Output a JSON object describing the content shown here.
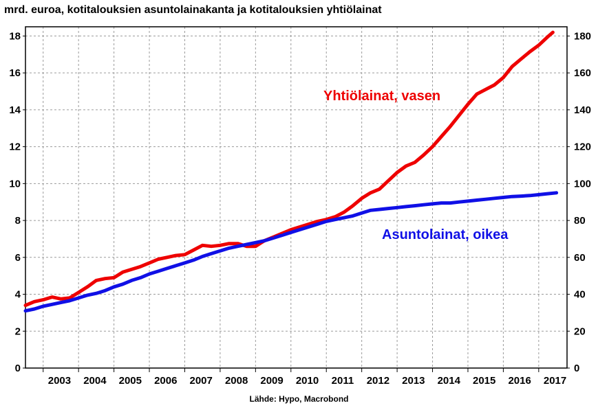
{
  "title": "mrd. euroa, kotitalouksien asuntolainakanta ja kotitalouksien yhtiölainat",
  "source": "Lähde: Hypo, Macrobond",
  "colors": {
    "left_series": "#ee0000",
    "right_series": "#1010e6",
    "grid": "#9a9a9a",
    "axis": "#000000"
  },
  "chart_data": {
    "type": "line",
    "title": "mrd. euroa, kotitalouksien asuntolainakanta ja kotitalouksien yhtiölainat",
    "x_tick_labels": [
      "2003",
      "2004",
      "2005",
      "2006",
      "2007",
      "2008",
      "2009",
      "2010",
      "2011",
      "2012",
      "2013",
      "2014",
      "2015",
      "2016",
      "2017"
    ],
    "xlim": [
      2002.5,
      2017.8
    ],
    "left_axis": {
      "ylim": [
        0,
        18.5
      ],
      "ticks": [
        0,
        2,
        4,
        6,
        8,
        10,
        12,
        14,
        16,
        18
      ]
    },
    "right_axis": {
      "ylim": [
        0,
        185
      ],
      "ticks": [
        0,
        20,
        40,
        60,
        80,
        100,
        120,
        140,
        160,
        180
      ]
    },
    "grid": true,
    "series": [
      {
        "name": "Yhtiölainat, vasen",
        "axis": "left",
        "x": [
          2002.5,
          2002.75,
          2003.0,
          2003.25,
          2003.5,
          2003.75,
          2004.0,
          2004.25,
          2004.5,
          2004.75,
          2005.0,
          2005.25,
          2005.5,
          2005.75,
          2006.0,
          2006.25,
          2006.5,
          2006.75,
          2007.0,
          2007.25,
          2007.5,
          2007.75,
          2008.0,
          2008.25,
          2008.5,
          2008.75,
          2009.0,
          2009.25,
          2009.5,
          2009.75,
          2010.0,
          2010.25,
          2010.5,
          2010.75,
          2011.0,
          2011.25,
          2011.5,
          2011.75,
          2012.0,
          2012.25,
          2012.5,
          2012.75,
          2013.0,
          2013.25,
          2013.5,
          2013.75,
          2014.0,
          2014.25,
          2014.5,
          2014.75,
          2015.0,
          2015.25,
          2015.5,
          2015.75,
          2016.0,
          2016.25,
          2016.5,
          2016.75,
          2017.0,
          2017.25,
          2017.4
        ],
        "values": [
          3.4,
          3.6,
          3.7,
          3.85,
          3.75,
          3.8,
          4.1,
          4.4,
          4.75,
          4.85,
          4.9,
          5.2,
          5.35,
          5.5,
          5.7,
          5.9,
          6.0,
          6.1,
          6.15,
          6.4,
          6.65,
          6.6,
          6.65,
          6.75,
          6.75,
          6.6,
          6.6,
          6.9,
          7.1,
          7.3,
          7.5,
          7.65,
          7.8,
          7.95,
          8.05,
          8.2,
          8.45,
          8.8,
          9.2,
          9.5,
          9.7,
          10.15,
          10.6,
          10.95,
          11.15,
          11.55,
          12.0,
          12.55,
          13.1,
          13.7,
          14.3,
          14.85,
          15.1,
          15.35,
          15.75,
          16.35,
          16.75,
          17.15,
          17.5,
          17.95,
          18.2
        ]
      },
      {
        "name": "Asuntolainat, oikea",
        "axis": "right",
        "x": [
          2002.5,
          2002.75,
          2003.0,
          2003.25,
          2003.5,
          2003.75,
          2004.0,
          2004.25,
          2004.5,
          2004.75,
          2005.0,
          2005.25,
          2005.5,
          2005.75,
          2006.0,
          2006.25,
          2006.5,
          2006.75,
          2007.0,
          2007.25,
          2007.5,
          2007.75,
          2008.0,
          2008.25,
          2008.5,
          2008.75,
          2009.0,
          2009.25,
          2009.5,
          2009.75,
          2010.0,
          2010.25,
          2010.5,
          2010.75,
          2011.0,
          2011.25,
          2011.5,
          2011.75,
          2012.0,
          2012.25,
          2012.5,
          2012.75,
          2013.0,
          2013.25,
          2013.5,
          2013.75,
          2014.0,
          2014.25,
          2014.5,
          2014.75,
          2015.0,
          2015.25,
          2015.5,
          2015.75,
          2016.0,
          2016.25,
          2016.5,
          2016.75,
          2017.0,
          2017.25,
          2017.5
        ],
        "values": [
          31,
          32,
          33.5,
          34.5,
          35.5,
          36.5,
          38,
          39.5,
          40.5,
          42,
          44,
          45.5,
          47.5,
          49,
          51,
          52.5,
          54,
          55.5,
          57,
          58.5,
          60.5,
          62,
          63.5,
          65,
          66,
          67,
          68,
          69,
          70.5,
          72,
          73.5,
          75,
          76.5,
          78,
          79.5,
          80.5,
          81.5,
          82.5,
          84,
          85.5,
          86,
          86.5,
          87,
          87.5,
          88,
          88.5,
          89,
          89.5,
          89.5,
          90,
          90.5,
          91,
          91.5,
          92,
          92.5,
          93,
          93.2,
          93.5,
          94,
          94.5,
          95
        ]
      }
    ],
    "annotations": [
      {
        "text": "Yhtiölainat, vasen",
        "series": "Yhtiölainat, vasen"
      },
      {
        "text": "Asuntolainat, oikea",
        "series": "Asuntolainat, oikea"
      }
    ]
  }
}
